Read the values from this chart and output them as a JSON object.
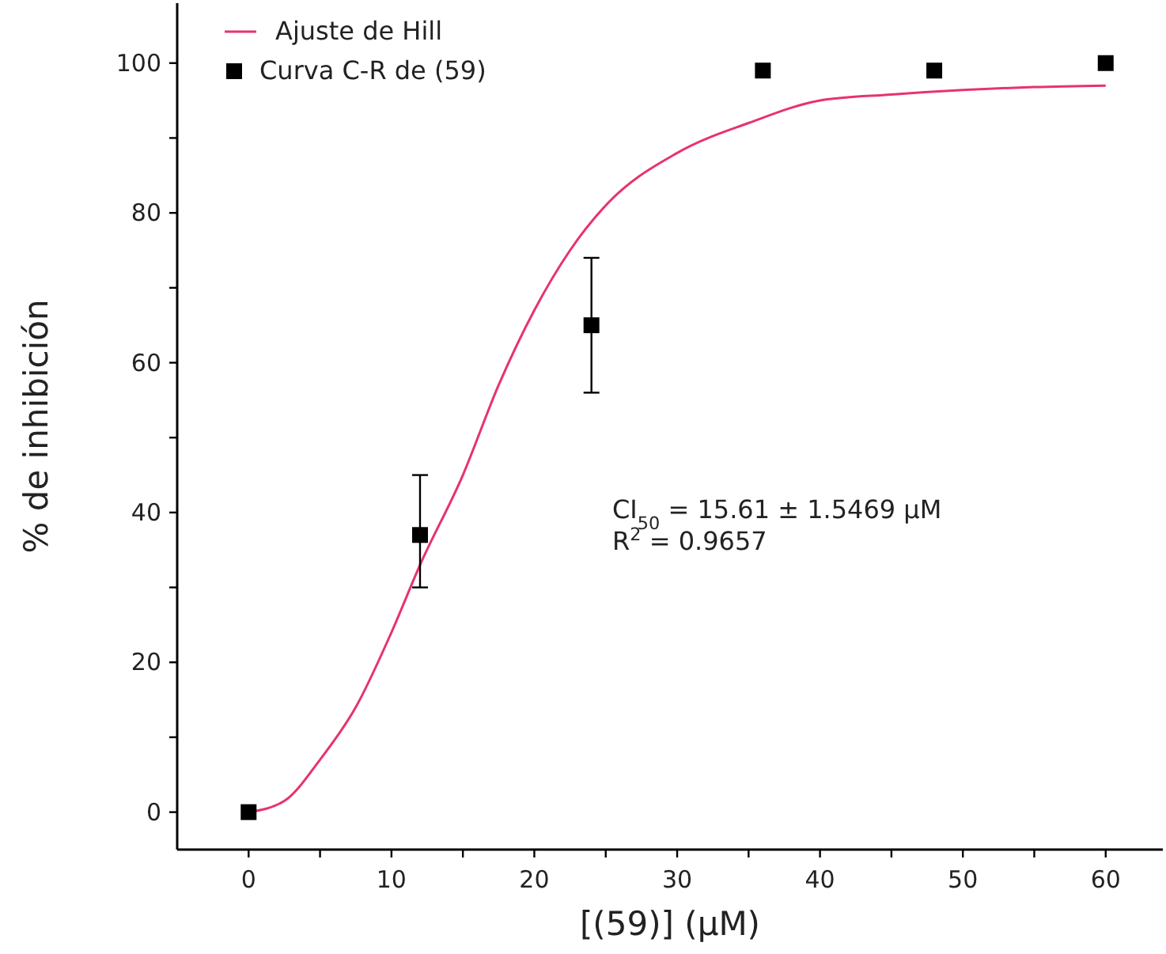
{
  "chart_data": {
    "type": "scatter",
    "xlabel": "[(59)] (μM)",
    "ylabel": "% de inhibición",
    "xlim": [
      -5,
      64
    ],
    "ylim": [
      -5,
      108
    ],
    "xticks": [
      0,
      {
        "value": 5,
        "label": null
      },
      10,
      {
        "value": 15,
        "label": null
      },
      20,
      {
        "value": 25,
        "label": null
      },
      30,
      {
        "value": 35,
        "label": null
      },
      40,
      {
        "value": 45,
        "label": null
      },
      50,
      {
        "value": 55,
        "label": null
      },
      60
    ],
    "yticks": [
      0,
      {
        "value": 10,
        "label": null
      },
      20,
      {
        "value": 30,
        "label": null
      },
      40,
      {
        "value": 50,
        "label": null
      },
      60,
      {
        "value": 70,
        "label": null
      },
      80,
      {
        "value": 90,
        "label": null
      },
      100
    ],
    "legend": "top left",
    "grid": false,
    "series": [
      {
        "name": "Ajuste de Hill",
        "type": "line",
        "color": "#e8336b",
        "marker": "none",
        "line_style": "solid",
        "x": [
          0,
          2.5,
          5,
          7.5,
          10,
          12,
          15,
          17.5,
          20,
          22.5,
          25,
          30,
          35,
          40,
          45,
          50,
          55,
          60
        ],
        "values": [
          0,
          1.5,
          7,
          14,
          24,
          33,
          45,
          57,
          67,
          75,
          81,
          88,
          92,
          95,
          95.8,
          96.4,
          96.8,
          97
        ]
      },
      {
        "name": "Curva C-R de (59)",
        "color": "#000000",
        "marker": "square",
        "x": [
          0,
          12,
          24,
          36,
          48,
          60
        ],
        "values": [
          0,
          37,
          65,
          99,
          99,
          100
        ],
        "errors": [
          null,
          [
            30,
            45
          ],
          [
            56,
            74
          ],
          null,
          null,
          null
        ]
      }
    ],
    "annotations": [
      "CI$_{50}$ = 15.61 ± 1.5469 μM",
      "R$^{2}$ = 0.9657"
    ]
  }
}
